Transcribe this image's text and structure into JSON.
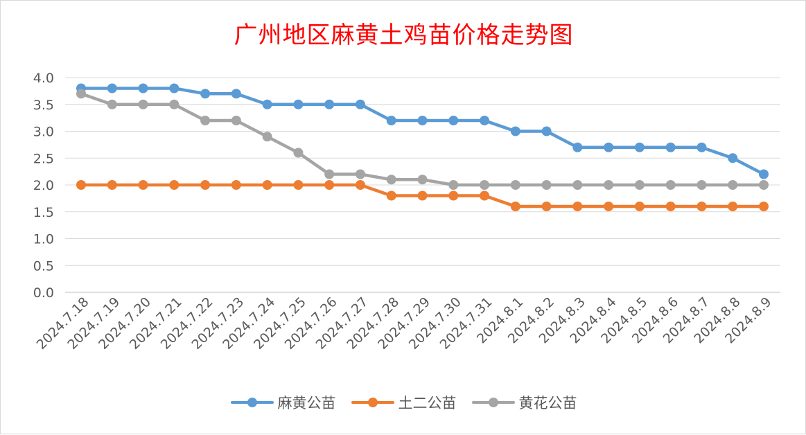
{
  "chart_data": {
    "type": "line",
    "title": "广州地区麻黄土鸡苗价格走势图",
    "xlabel": "",
    "ylabel": "",
    "ylim": [
      0,
      4.0
    ],
    "yticks": [
      "0.0",
      "0.5",
      "1.0",
      "1.5",
      "2.0",
      "2.5",
      "3.0",
      "3.5",
      "4.0"
    ],
    "grid": true,
    "legend_position": "bottom",
    "categories": [
      "2024.7.18",
      "2024.7.19",
      "2024.7.20",
      "2024.7.21",
      "2024.7.22",
      "2024.7.23",
      "2024.7.24",
      "2024.7.25",
      "2024.7.26",
      "2024.7.27",
      "2024.7.28",
      "2024.7.29",
      "2024.7.30",
      "2024.7.31",
      "2024.8.1",
      "2024.8.2",
      "2024.8.3",
      "2024.8.4",
      "2024.8.5",
      "2024.8.6",
      "2024.8.7",
      "2024.8.8",
      "2024.8.9"
    ],
    "series": [
      {
        "name": "麻黄公苗",
        "color": "#5b9bd5",
        "values": [
          3.8,
          3.8,
          3.8,
          3.8,
          3.7,
          3.7,
          3.5,
          3.5,
          3.5,
          3.5,
          3.2,
          3.2,
          3.2,
          3.2,
          3.0,
          3.0,
          2.7,
          2.7,
          2.7,
          2.7,
          2.7,
          2.5,
          2.2
        ]
      },
      {
        "name": "土二公苗",
        "color": "#ed7d31",
        "values": [
          2.0,
          2.0,
          2.0,
          2.0,
          2.0,
          2.0,
          2.0,
          2.0,
          2.0,
          2.0,
          1.8,
          1.8,
          1.8,
          1.8,
          1.6,
          1.6,
          1.6,
          1.6,
          1.6,
          1.6,
          1.6,
          1.6,
          1.6
        ]
      },
      {
        "name": "黄花公苗",
        "color": "#a5a5a5",
        "values": [
          3.7,
          3.5,
          3.5,
          3.5,
          3.2,
          3.2,
          2.9,
          2.6,
          2.2,
          2.2,
          2.1,
          2.1,
          2.0,
          2.0,
          2.0,
          2.0,
          2.0,
          2.0,
          2.0,
          2.0,
          2.0,
          2.0,
          2.0
        ]
      }
    ]
  }
}
